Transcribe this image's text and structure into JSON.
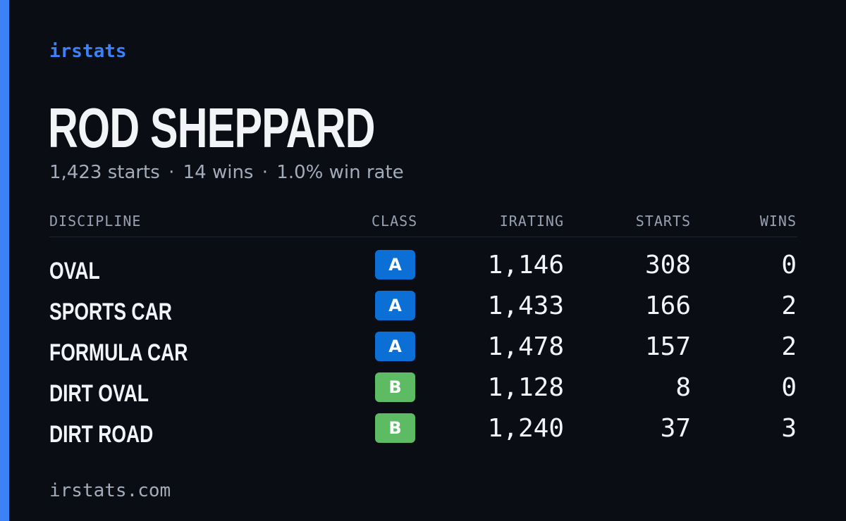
{
  "colors": {
    "background": "#0a0d14",
    "accent": "#3b82f6",
    "brand_text": "#3b82f6",
    "class_a": "#0b6fd6",
    "class_b": "#5dbb63"
  },
  "brand": {
    "label": "irstats"
  },
  "driver": {
    "name": "ROD SHEPPARD",
    "starts_text": "1,423 starts",
    "wins_text": "14 wins",
    "win_rate_text": "1.0% win rate",
    "separator": "·"
  },
  "table": {
    "headers": {
      "discipline": "DISCIPLINE",
      "class": "CLASS",
      "irating": "IRATING",
      "starts": "STARTS",
      "wins": "WINS"
    },
    "rows": [
      {
        "discipline": "OVAL",
        "class": "A",
        "irating": "1,146",
        "starts": "308",
        "wins": "0"
      },
      {
        "discipline": "SPORTS CAR",
        "class": "A",
        "irating": "1,433",
        "starts": "166",
        "wins": "2"
      },
      {
        "discipline": "FORMULA CAR",
        "class": "A",
        "irating": "1,478",
        "starts": "157",
        "wins": "2"
      },
      {
        "discipline": "DIRT OVAL",
        "class": "B",
        "irating": "1,128",
        "starts": "8",
        "wins": "0"
      },
      {
        "discipline": "DIRT ROAD",
        "class": "B",
        "irating": "1,240",
        "starts": "37",
        "wins": "3"
      }
    ]
  },
  "footer": {
    "domain": "irstats.com"
  }
}
